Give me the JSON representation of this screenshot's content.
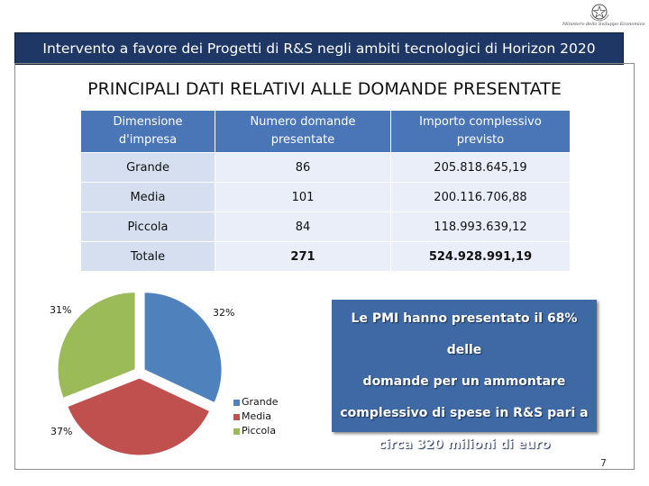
{
  "header": {
    "emblem_icon": "italian-republic-emblem-icon",
    "ministry": "Ministero dello Sviluppo Economico",
    "banner": "Intervento a favore dei Progetti di R&S negli ambiti tecnologici di Horizon 2020"
  },
  "title": "PRINCIPALI DATI RELATIVI ALLE DOMANDE PRESENTATE",
  "table": {
    "headers": {
      "size_line1": "Dimensione",
      "size_line2": "d'impresa",
      "count_line1": "Numero domande",
      "count_line2": "presentate",
      "amount_line1": "Importo complessivo",
      "amount_line2": "previsto"
    },
    "rows": [
      {
        "size": "Grande",
        "count": "86",
        "amount": "205.818.645,19"
      },
      {
        "size": "Media",
        "count": "101",
        "amount": "200.116.706,88"
      },
      {
        "size": "Piccola",
        "count": "84",
        "amount": "118.993.639,12"
      }
    ],
    "total": {
      "size": "Totale",
      "count": "271",
      "amount": "524.928.991,19"
    }
  },
  "chart_data": {
    "type": "pie",
    "categories": [
      "Grande",
      "Media",
      "Piccola"
    ],
    "values": [
      32,
      37,
      31
    ],
    "labels": [
      "32%",
      "37%",
      "31%"
    ],
    "colors": [
      "#4f81bd",
      "#c0504d",
      "#9bbb59"
    ],
    "legend": "right"
  },
  "note": {
    "line1": "Le PMI hanno presentato il 68% delle",
    "line2": "domande per un ammontare",
    "line3": "complessivo di spese in R&S pari a",
    "line4": "circa 320 milioni di euro"
  },
  "page_number": "7"
}
